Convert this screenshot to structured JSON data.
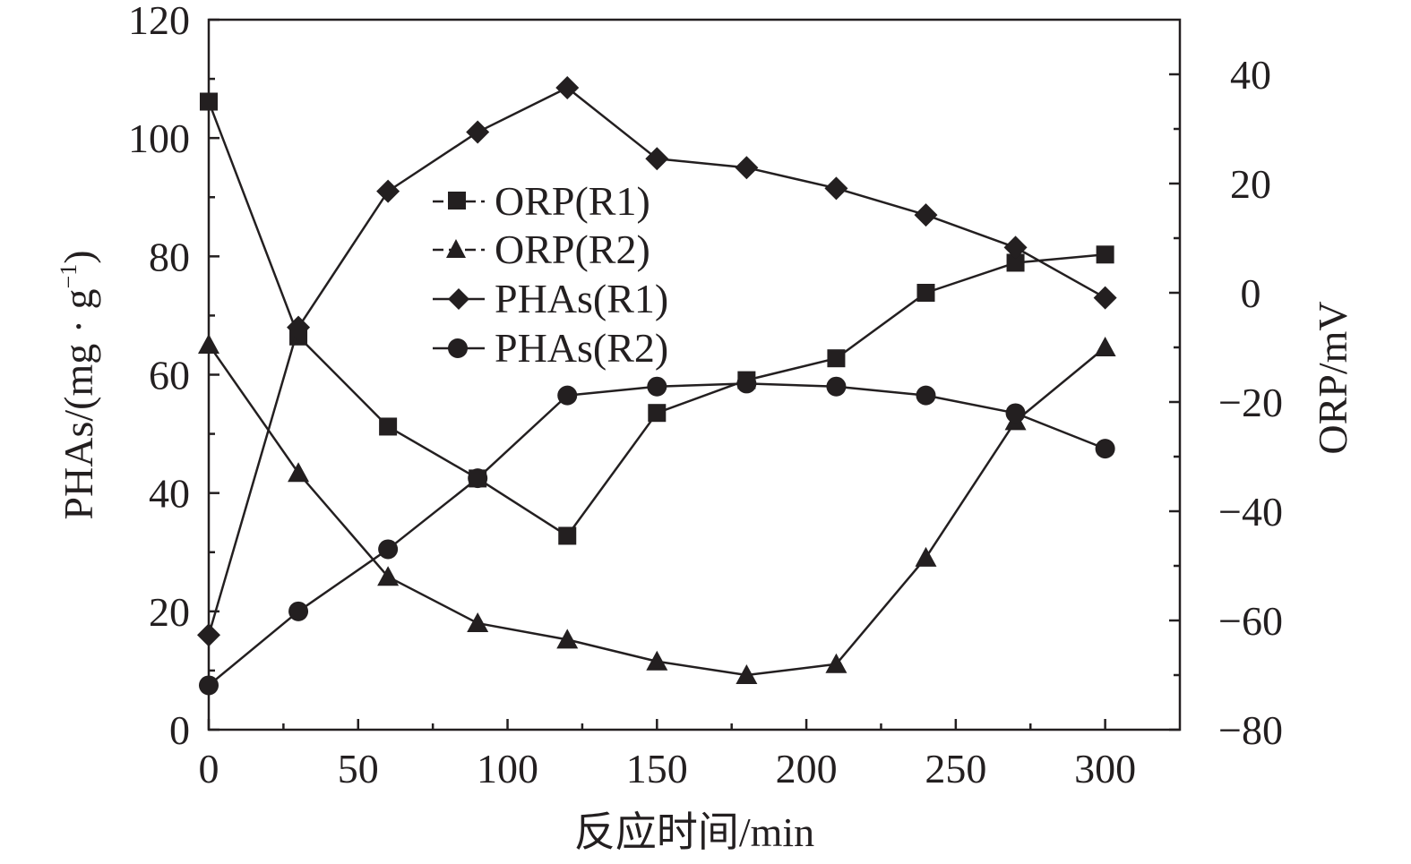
{
  "chart_data": {
    "type": "line",
    "x": [
      0,
      30,
      60,
      90,
      120,
      150,
      180,
      210,
      240,
      270,
      300
    ],
    "xlabel": "反应时间/min",
    "xlim": [
      0,
      325
    ],
    "xticks": [
      0,
      50,
      100,
      150,
      200,
      250,
      300
    ],
    "ylabel_left": {
      "main": "PHAs/(mg · g",
      "sup": "−1",
      "close": ")"
    },
    "ylim_left": [
      0,
      120
    ],
    "yticks_left": [
      0,
      20,
      40,
      60,
      80,
      100,
      120
    ],
    "ylabel_right": "ORP/mV",
    "ylim_right": [
      -80,
      50
    ],
    "yticks_right": [
      -80,
      -60,
      -40,
      -20,
      0,
      20,
      40
    ],
    "ytick_labels_right": [
      "−80",
      "−60",
      "−40",
      "−20",
      "0",
      "20",
      "40"
    ],
    "grid": false,
    "legend_position": "upper-center",
    "series": [
      {
        "name": "ORP(R1)",
        "axis": "right",
        "marker": "square",
        "values": [
          35,
          -8,
          -24.5,
          -34,
          -44.5,
          -22,
          -16,
          -12,
          0,
          5.5,
          7
        ]
      },
      {
        "name": "ORP(R2)",
        "axis": "right",
        "marker": "triangle",
        "values": [
          -9.5,
          -33,
          -52,
          -60.5,
          -63.5,
          -67.5,
          -70,
          -68,
          -48.5,
          -23.5,
          -10
        ]
      },
      {
        "name": "PHAs(R1)",
        "axis": "left",
        "marker": "diamond",
        "values": [
          16,
          68,
          91,
          101,
          108.5,
          96.5,
          95,
          91.5,
          87,
          81.5,
          73
        ]
      },
      {
        "name": "PHAs(R2)",
        "axis": "left",
        "marker": "circle",
        "values": [
          7.5,
          20,
          30.5,
          42.5,
          56.5,
          58,
          58.5,
          58,
          56.5,
          53.5,
          47.5
        ]
      }
    ]
  }
}
